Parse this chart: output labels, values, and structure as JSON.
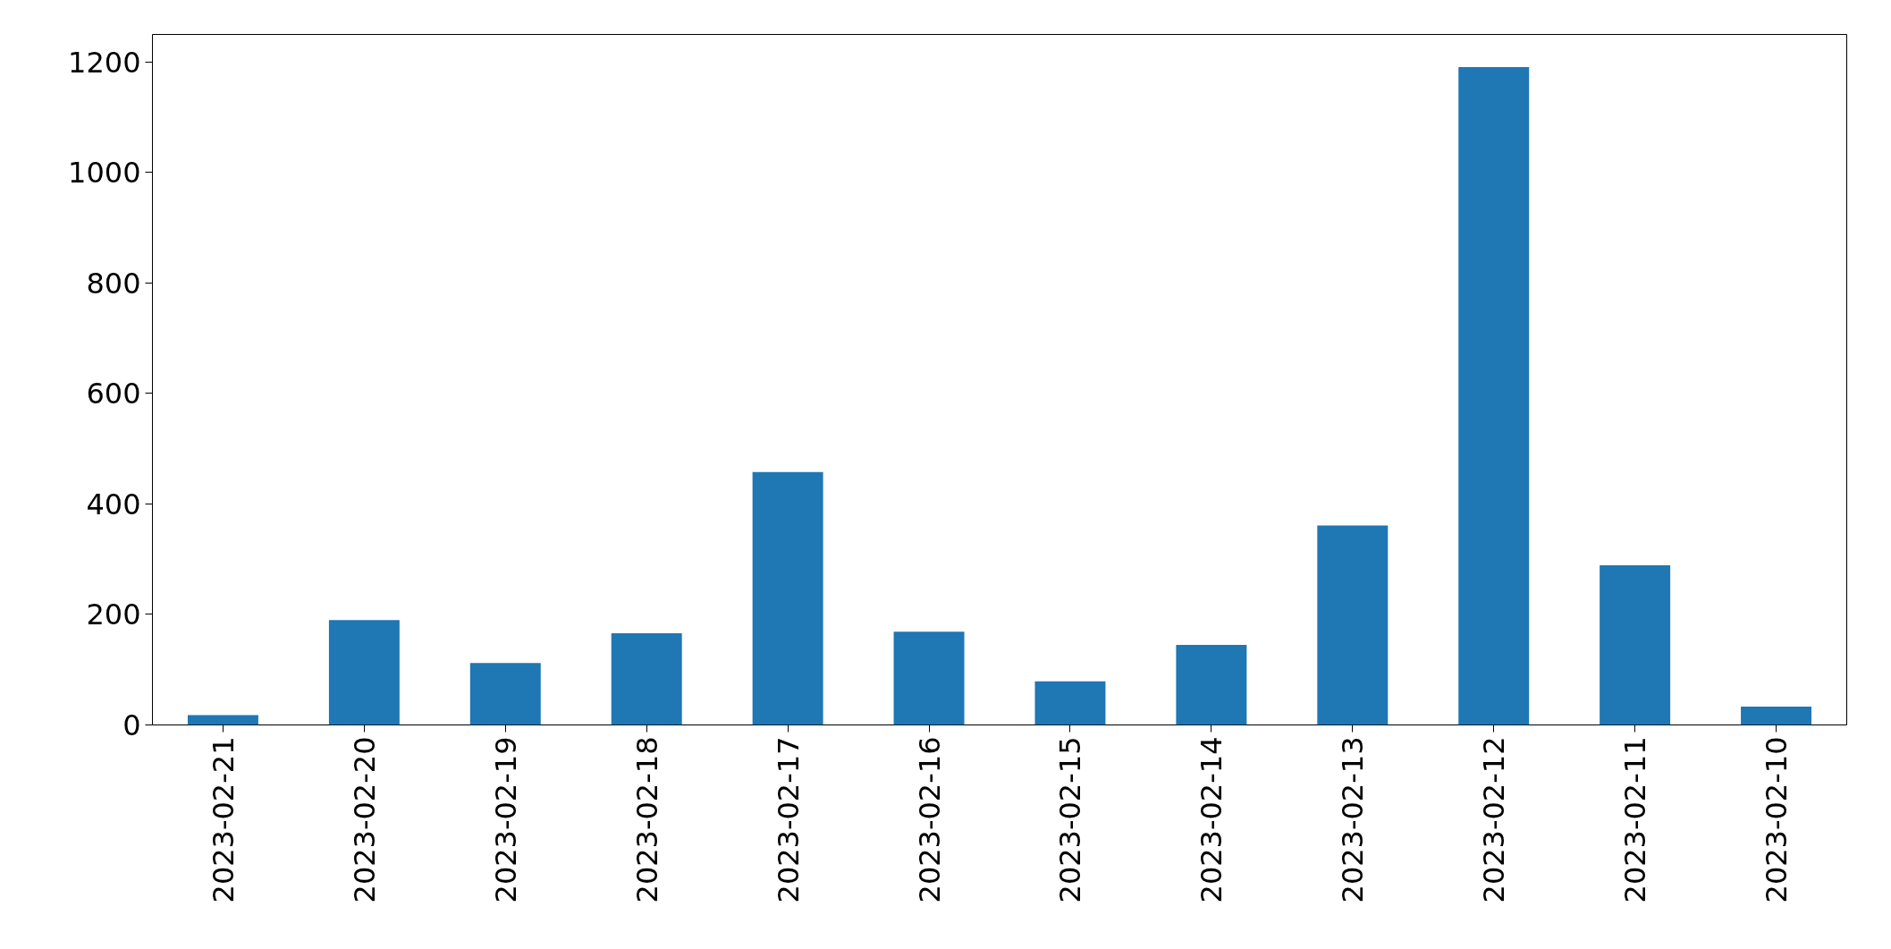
{
  "chart_data": {
    "type": "bar",
    "categories": [
      "2023-02-21",
      "2023-02-20",
      "2023-02-19",
      "2023-02-18",
      "2023-02-17",
      "2023-02-16",
      "2023-02-15",
      "2023-02-14",
      "2023-02-13",
      "2023-02-12",
      "2023-02-11",
      "2023-02-10"
    ],
    "values": [
      18,
      190,
      112,
      166,
      458,
      169,
      79,
      145,
      361,
      1191,
      289,
      33
    ],
    "color": "#1f77b4",
    "ylim": [
      0,
      1250
    ],
    "yticks": [
      0,
      200,
      400,
      600,
      800,
      1000,
      1200
    ],
    "grid": false
  }
}
